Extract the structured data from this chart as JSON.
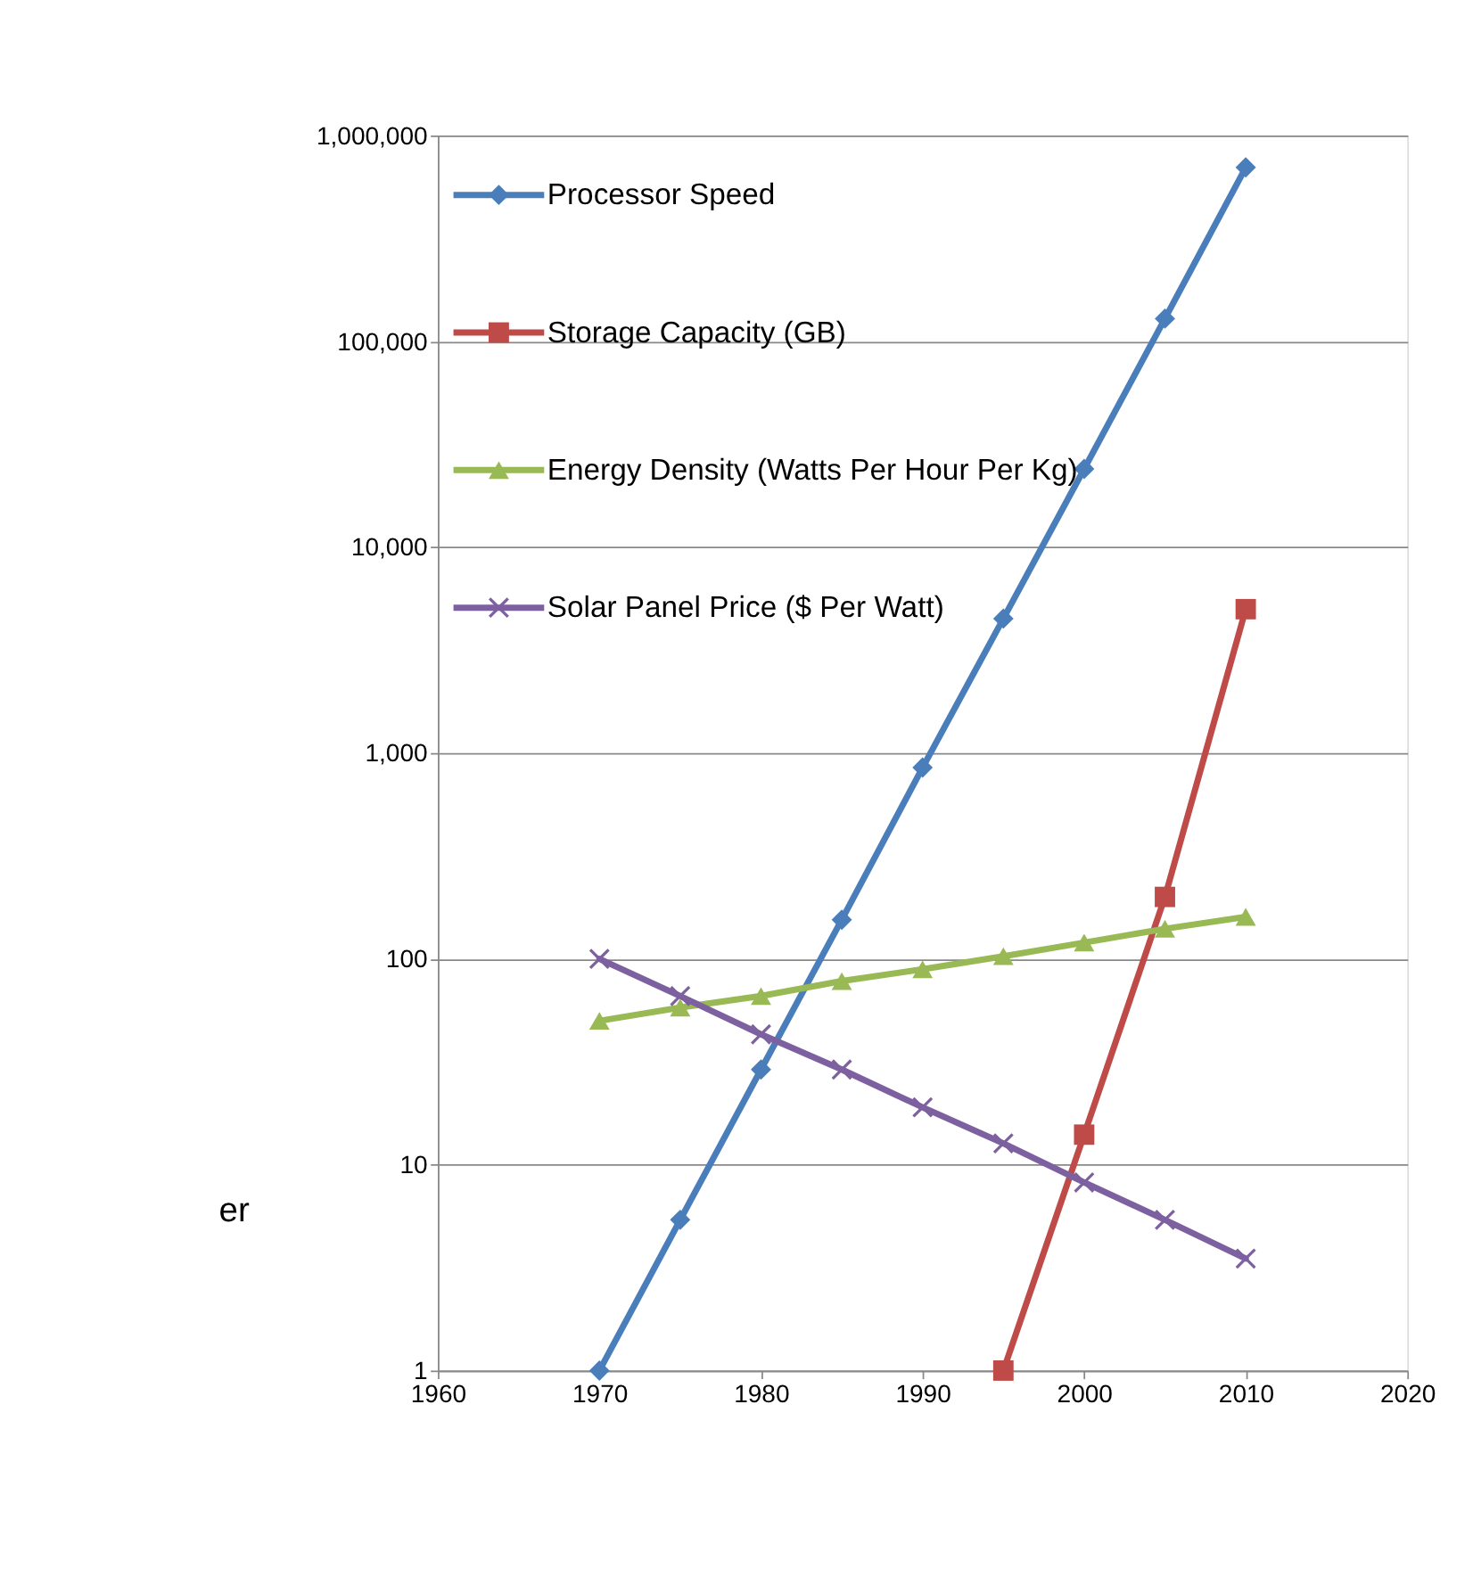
{
  "chart_data": {
    "type": "line",
    "log": "y",
    "grid": "y",
    "legend": "top left",
    "line_style": "solid",
    "x": [
      1970,
      1975,
      1980,
      1985,
      1990,
      1995,
      2000,
      2005,
      2010
    ],
    "xlim": [
      1960,
      2020
    ],
    "xticks": [
      1960,
      1970,
      1980,
      1990,
      2000,
      2010,
      2020
    ],
    "ylim": [
      1,
      1000000
    ],
    "yticks": [
      {
        "value": 1,
        "label": "1"
      },
      {
        "value": 10,
        "label": "10"
      },
      {
        "value": 100,
        "label": "100"
      },
      {
        "value": 1000,
        "label": "1,000"
      },
      {
        "value": 10000,
        "label": "10,000"
      },
      {
        "value": 100000,
        "label": "100,000"
      },
      {
        "value": 1000000,
        "label": "1,000,000"
      }
    ],
    "annotations": [
      "er"
    ],
    "series": [
      {
        "name": "Processor Speed",
        "color": "#4a7ebb",
        "marker": "diamond",
        "values": [
          1,
          5.4,
          29,
          155,
          850,
          4500,
          24000,
          129000,
          700000
        ]
      },
      {
        "name": "Storage Capacity (GB)",
        "color": "#be4b48",
        "marker": "square",
        "x": [
          1995,
          2000,
          2005,
          2010
        ],
        "values": [
          1,
          14,
          200,
          5000
        ]
      },
      {
        "name": "Energy Density (Watts Per Hour Per Kg)",
        "color": "#98b954",
        "marker": "triangle",
        "values": [
          50,
          58,
          66,
          78,
          89,
          103,
          120,
          140,
          160
        ]
      },
      {
        "name": "Solar Panel Price ($ Per Watt)",
        "color": "#7d60a0",
        "marker": "cross",
        "values": [
          100,
          66,
          43,
          29,
          19,
          12.7,
          8.2,
          5.4,
          3.5
        ]
      }
    ]
  }
}
